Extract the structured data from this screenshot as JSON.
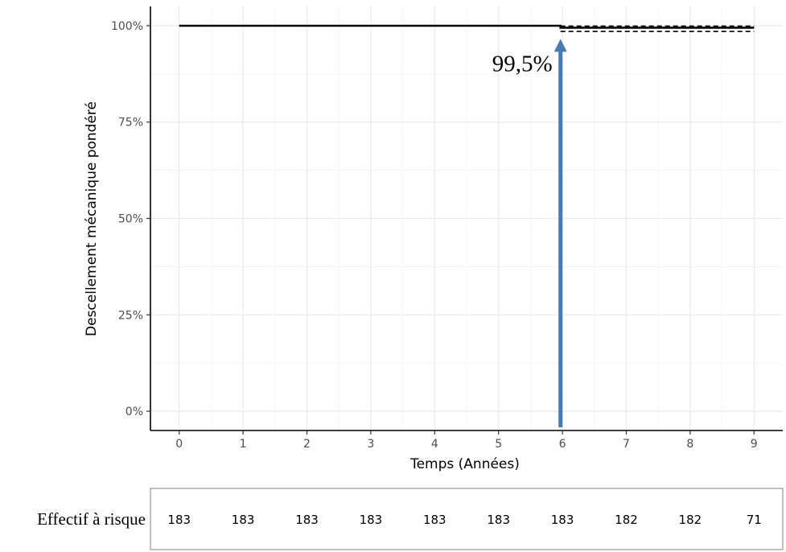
{
  "chart_data": {
    "type": "line",
    "xlabel": "Temps (Années)",
    "ylabel": "Descellement mécanique pondéré",
    "xlim": [
      -0.45,
      9.45
    ],
    "ylim": [
      -0.05,
      1.05
    ],
    "x_ticks": [
      "0",
      "1",
      "2",
      "3",
      "4",
      "5",
      "6",
      "7",
      "8",
      "9"
    ],
    "y_ticks": [
      "0%",
      "25%",
      "50%",
      "75%",
      "100%"
    ],
    "grid": true,
    "series": [
      {
        "style": "solid",
        "color": "#000000",
        "x": [
          0,
          5.97,
          5.97,
          9
        ],
        "y": [
          1.0,
          1.0,
          0.995,
          0.995
        ]
      },
      {
        "style": "dashed",
        "color": "#000000",
        "x": [
          5.97,
          9
        ],
        "y": [
          0.999,
          0.999
        ]
      },
      {
        "style": "dashed",
        "color": "#000000",
        "x": [
          5.97,
          9
        ],
        "y": [
          0.985,
          0.985
        ]
      }
    ],
    "annotations": [
      {
        "text": "99,5%",
        "x": 5.97,
        "y": 0.995,
        "arrow_color": "#4a7ab5"
      }
    ],
    "risk_table": {
      "label": "Effectif à risque",
      "x": [
        0,
        1,
        2,
        3,
        4,
        5,
        6,
        7,
        8,
        9
      ],
      "values": [
        "183",
        "183",
        "183",
        "183",
        "183",
        "183",
        "183",
        "182",
        "182",
        "71"
      ]
    }
  }
}
